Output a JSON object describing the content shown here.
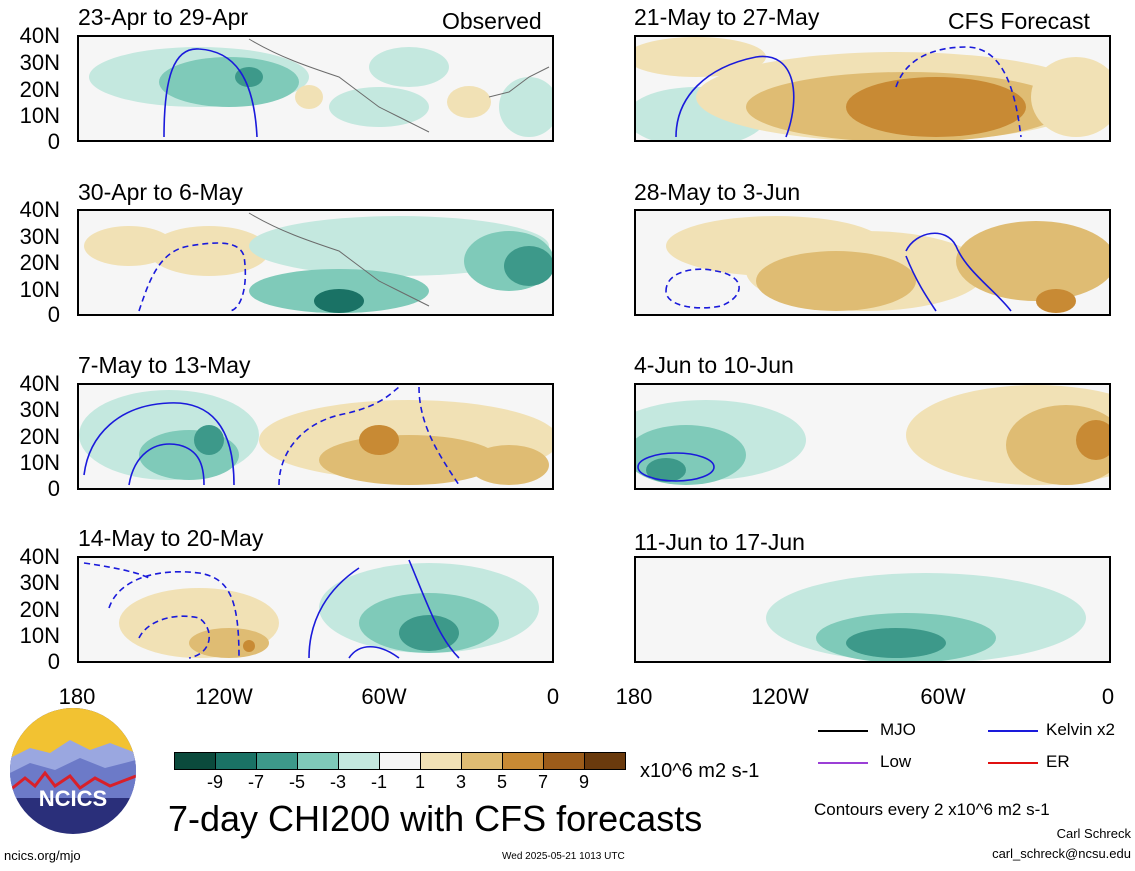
{
  "header": {
    "observed_label": "Observed",
    "forecast_label": "CFS Forecast"
  },
  "panels": [
    {
      "title": "23-Apr to 29-Apr"
    },
    {
      "title": "30-Apr to 6-May"
    },
    {
      "title": "7-May to 13-May"
    },
    {
      "title": "14-May to 20-May"
    },
    {
      "title": "21-May to 27-May"
    },
    {
      "title": "28-May to 3-Jun"
    },
    {
      "title": "4-Jun to 10-Jun"
    },
    {
      "title": "11-Jun to 17-Jun"
    }
  ],
  "y_ticks": [
    "40N",
    "30N",
    "20N",
    "10N",
    "0"
  ],
  "x_ticks": [
    "180",
    "120W",
    "60W",
    "0"
  ],
  "legend": {
    "mjo": "MJO",
    "kelvin": "Kelvin x2",
    "low": "Low",
    "er": "ER",
    "mjo_color": "#000000",
    "kelvin_color": "#1a1adb",
    "low_color": "#9b3fd6",
    "er_color": "#e01010"
  },
  "colorbar": {
    "ticks": [
      "-9",
      "-7",
      "-5",
      "-3",
      "-1",
      "1",
      "3",
      "5",
      "7",
      "9"
    ],
    "units": "x10^6 m2 s-1",
    "colors": [
      "#0b4a3c",
      "#1a7265",
      "#3d998a",
      "#7fcab9",
      "#c4e8df",
      "#f6f6f6",
      "#f1e1b5",
      "#dfbc73",
      "#c88a34",
      "#9c5c1a",
      "#6a3a0d"
    ]
  },
  "title": "7-day CHI200 with CFS forecasts",
  "contour_note": "Contours every 2 x10^6 m2 s-1",
  "author": "Carl Schreck",
  "email": "carl_schreck@ncsu.edu",
  "url": "ncics.org/mjo",
  "timestamp": "Wed 2025-05-21 1013 UTC",
  "logo_text": "NCICS"
}
